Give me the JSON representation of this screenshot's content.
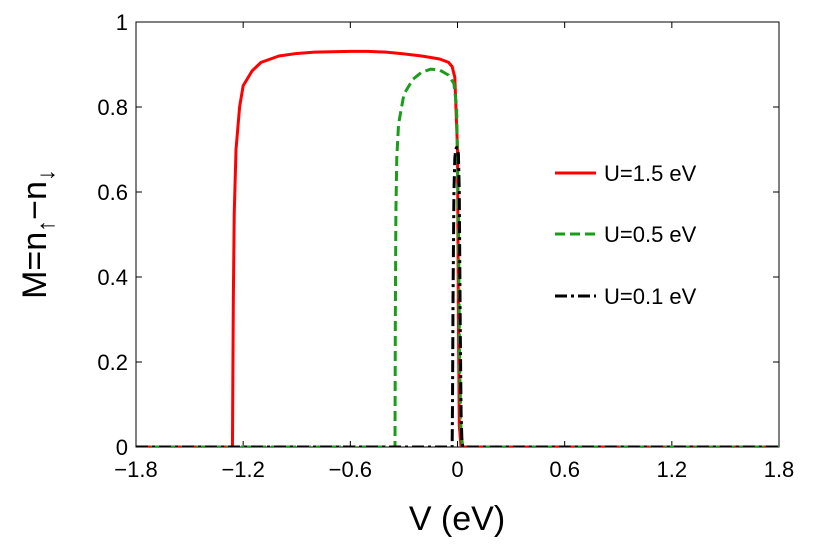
{
  "chart_data": {
    "type": "line",
    "title": "",
    "xlabel": "V (eV)",
    "ylabel_parts": {
      "main": "M=n",
      "up_subscript": "↑",
      "minus": "−n",
      "down_subscript": "↓"
    },
    "xlim": [
      -1.8,
      1.8
    ],
    "ylim": [
      0,
      1
    ],
    "xticks": [
      -1.8,
      -1.2,
      -0.6,
      0,
      0.6,
      1.2,
      1.8
    ],
    "xtick_labels": [
      "−1.8",
      "−1.2",
      "−0.6",
      "0",
      "0.6",
      "1.2",
      "1.8"
    ],
    "yticks": [
      0,
      0.2,
      0.4,
      0.6,
      0.8,
      1
    ],
    "ytick_labels": [
      "0",
      "0.2",
      "0.4",
      "0.6",
      "0.8",
      "1"
    ],
    "grid": false,
    "legend_position": "right",
    "series": [
      {
        "name": "U=1.5 eV",
        "color": "#ff0000",
        "dash": "solid",
        "x": [
          -1.8,
          -1.26,
          -1.255,
          -1.25,
          -1.24,
          -1.22,
          -1.2,
          -1.15,
          -1.1,
          -1.0,
          -0.9,
          -0.8,
          -0.7,
          -0.6,
          -0.5,
          -0.4,
          -0.3,
          -0.2,
          -0.1,
          -0.05,
          -0.03,
          -0.015,
          0.0,
          0.005,
          0.01,
          0.02,
          1.8
        ],
        "y": [
          0,
          0,
          0.35,
          0.55,
          0.7,
          0.8,
          0.85,
          0.885,
          0.905,
          0.92,
          0.926,
          0.929,
          0.93,
          0.931,
          0.931,
          0.929,
          0.925,
          0.92,
          0.913,
          0.905,
          0.895,
          0.87,
          0.7,
          0.3,
          0.05,
          0,
          0
        ]
      },
      {
        "name": "U=0.5 eV",
        "color": "#1a9e1a",
        "dash": "dashed",
        "x": [
          -1.8,
          -0.35,
          -0.348,
          -0.345,
          -0.34,
          -0.33,
          -0.3,
          -0.25,
          -0.2,
          -0.15,
          -0.1,
          -0.05,
          -0.02,
          -0.005,
          0.005,
          0.012,
          0.02,
          0.03,
          1.8
        ],
        "y": [
          0,
          0,
          0.3,
          0.55,
          0.68,
          0.76,
          0.83,
          0.865,
          0.882,
          0.889,
          0.887,
          0.875,
          0.855,
          0.8,
          0.55,
          0.2,
          0.03,
          0,
          0
        ]
      },
      {
        "name": "U=0.1 eV",
        "color": "#000000",
        "dash": "dashdot",
        "x": [
          -1.8,
          -0.03,
          -0.028,
          -0.025,
          -0.02,
          -0.015,
          -0.01,
          -0.005,
          0.0,
          0.005,
          0.01,
          0.015,
          0.02,
          0.025,
          0.03,
          1.8
        ],
        "y": [
          0,
          0,
          0.1,
          0.35,
          0.6,
          0.68,
          0.7,
          0.705,
          0.7,
          0.69,
          0.6,
          0.3,
          0.08,
          0.01,
          0,
          0
        ]
      }
    ]
  }
}
